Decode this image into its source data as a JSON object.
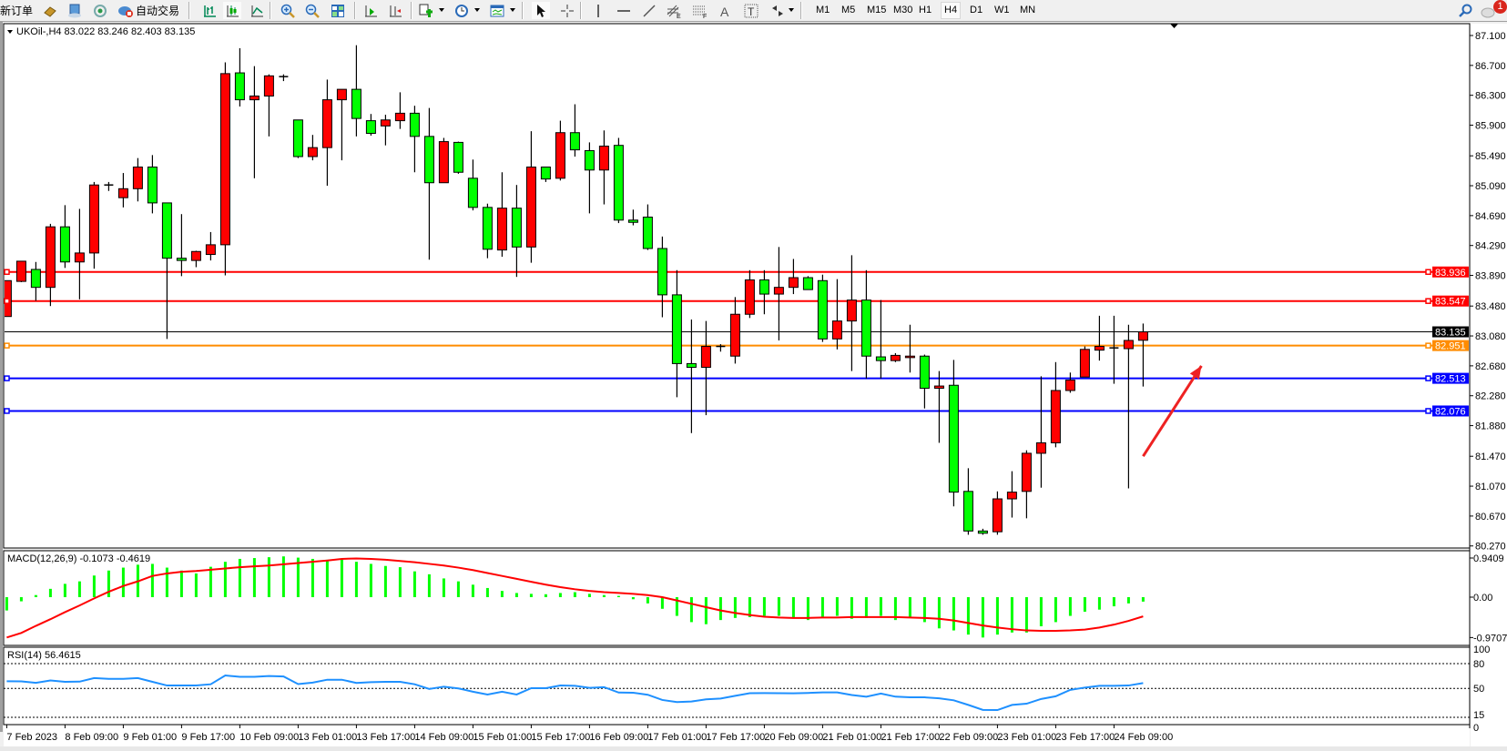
{
  "toolbar": {
    "new_order_label": "新订单",
    "auto_trading_label": "自动交易",
    "timeframes": [
      "M1",
      "M5",
      "M15",
      "M30",
      "H1",
      "H4",
      "D1",
      "W1",
      "MN"
    ],
    "selected_timeframe": "H4",
    "notification_count": "1",
    "icons": [
      "new-order",
      "gold-bars-icon",
      "terminal-icon",
      "signal-icon",
      "auto-trading-icon",
      "bar-chart-icon",
      "candlestick-icon",
      "line-chart-icon",
      "zoom-in-icon",
      "zoom-out-icon",
      "tile-windows-icon",
      "auto-scroll-icon",
      "chart-shift-icon",
      "indicators-icon",
      "periods-icon",
      "templates-icon",
      "cursor-icon",
      "crosshair-icon",
      "vertical-line-icon",
      "horizontal-line-icon",
      "trendline-icon",
      "fibonacci-icon",
      "fibo-fan-icon",
      "text-icon",
      "text-label-icon",
      "arrows-icon",
      "search-icon",
      "chat-icon"
    ]
  },
  "chart": {
    "header": "UKOil-,H4  83.022 83.246 82.403 83.135",
    "colors": {
      "bull": "#ff0000",
      "bear": "#00ff00",
      "grid_bg": "#ffffff",
      "macd_hist": "#00ff00",
      "macd_signal": "#ff0000",
      "rsi": "#1e90ff"
    }
  },
  "chart_data": [
    {
      "type": "candlestick",
      "symbol": "UKOil-",
      "timeframe": "H4",
      "ylim": [
        80.27,
        87.1
      ],
      "y_ticks": [
        "87.100",
        "86.700",
        "86.300",
        "85.900",
        "85.490",
        "85.090",
        "84.690",
        "84.290",
        "83.890",
        "83.480",
        "83.080",
        "82.680",
        "82.280",
        "81.880",
        "81.470",
        "81.070",
        "80.670",
        "80.270"
      ],
      "x_tick_labels": [
        "7 Feb 2023",
        "8 Feb 09:00",
        "9 Feb 01:00",
        "9 Feb 17:00",
        "10 Feb 09:00",
        "13 Feb 01:00",
        "13 Feb 17:00",
        "14 Feb 09:00",
        "15 Feb 01:00",
        "15 Feb 17:00",
        "16 Feb 09:00",
        "17 Feb 01:00",
        "17 Feb 17:00",
        "20 Feb 09:00",
        "21 Feb 01:00",
        "21 Feb 17:00",
        "22 Feb 09:00",
        "23 Feb 01:00",
        "23 Feb 17:00",
        "24 Feb 09:00"
      ],
      "x_tick_every_n_bars": 4,
      "ohlc": [
        [
          83.34,
          83.82,
          83.34,
          83.82
        ],
        [
          83.81,
          84.08,
          83.8,
          84.08
        ],
        [
          83.97,
          84.07,
          83.55,
          83.73
        ],
        [
          83.73,
          84.58,
          83.48,
          84.54
        ],
        [
          84.54,
          84.83,
          83.99,
          84.07
        ],
        [
          84.07,
          84.78,
          83.57,
          84.19
        ],
        [
          84.19,
          85.14,
          83.98,
          85.1
        ],
        [
          85.1,
          85.14,
          85.02,
          85.1
        ],
        [
          84.93,
          85.26,
          84.8,
          85.05
        ],
        [
          85.05,
          85.46,
          84.88,
          85.34
        ],
        [
          85.34,
          85.5,
          84.72,
          84.86
        ],
        [
          84.86,
          84.86,
          83.04,
          84.12
        ],
        [
          84.12,
          84.71,
          83.88,
          84.09
        ],
        [
          84.09,
          84.22,
          84.0,
          84.21
        ],
        [
          84.17,
          84.47,
          84.09,
          84.3
        ],
        [
          84.3,
          86.74,
          83.89,
          86.59
        ],
        [
          86.6,
          86.93,
          86.15,
          86.24
        ],
        [
          86.24,
          86.69,
          85.19,
          86.29
        ],
        [
          86.29,
          86.58,
          85.75,
          86.56
        ],
        [
          86.55,
          86.58,
          86.49,
          86.55
        ],
        [
          85.97,
          85.97,
          85.46,
          85.48
        ],
        [
          85.48,
          85.77,
          85.43,
          85.6
        ],
        [
          85.6,
          86.51,
          85.09,
          86.24
        ],
        [
          86.24,
          86.38,
          85.43,
          86.38
        ],
        [
          86.38,
          86.97,
          85.75,
          85.99
        ],
        [
          85.96,
          86.05,
          85.76,
          85.79
        ],
        [
          85.89,
          86.04,
          85.63,
          85.97
        ],
        [
          85.96,
          86.34,
          85.85,
          86.06
        ],
        [
          86.06,
          86.16,
          85.27,
          85.75
        ],
        [
          85.75,
          86.13,
          84.1,
          85.13
        ],
        [
          85.13,
          85.73,
          85.13,
          85.68
        ],
        [
          85.67,
          85.68,
          85.25,
          85.27
        ],
        [
          85.19,
          85.44,
          84.76,
          84.8
        ],
        [
          84.8,
          84.85,
          84.12,
          84.24
        ],
        [
          84.23,
          85.27,
          84.14,
          84.79
        ],
        [
          84.79,
          85.1,
          83.87,
          84.27
        ],
        [
          84.27,
          85.82,
          84.06,
          85.34
        ],
        [
          85.34,
          85.34,
          85.14,
          85.18
        ],
        [
          85.19,
          85.96,
          85.16,
          85.8
        ],
        [
          85.8,
          86.18,
          85.48,
          85.57
        ],
        [
          85.56,
          85.67,
          84.72,
          85.3
        ],
        [
          85.3,
          85.83,
          84.84,
          85.62
        ],
        [
          85.63,
          85.73,
          84.59,
          84.63
        ],
        [
          84.63,
          84.77,
          84.56,
          84.6
        ],
        [
          84.67,
          84.84,
          84.23,
          84.25
        ],
        [
          84.25,
          84.41,
          83.33,
          83.63
        ],
        [
          83.63,
          83.96,
          82.26,
          82.71
        ],
        [
          82.71,
          83.3,
          81.78,
          82.66
        ],
        [
          82.66,
          83.28,
          82.02,
          82.94
        ],
        [
          82.94,
          82.97,
          82.87,
          82.94
        ],
        [
          82.81,
          83.6,
          82.71,
          83.37
        ],
        [
          83.37,
          83.96,
          83.32,
          83.83
        ],
        [
          83.83,
          83.96,
          83.37,
          83.64
        ],
        [
          83.64,
          84.27,
          83.02,
          83.73
        ],
        [
          83.73,
          84.11,
          83.64,
          83.86
        ],
        [
          83.86,
          83.88,
          83.7,
          83.7
        ],
        [
          83.82,
          83.9,
          83.0,
          83.04
        ],
        [
          83.04,
          83.84,
          82.9,
          83.28
        ],
        [
          83.28,
          84.16,
          82.61,
          83.56
        ],
        [
          83.56,
          83.96,
          82.51,
          82.81
        ],
        [
          82.8,
          83.56,
          82.51,
          82.75
        ],
        [
          82.75,
          82.85,
          82.73,
          82.82
        ],
        [
          82.79,
          83.23,
          82.59,
          82.81
        ],
        [
          82.81,
          82.83,
          82.11,
          82.38
        ],
        [
          82.38,
          82.61,
          81.65,
          82.41
        ],
        [
          82.42,
          82.76,
          80.8,
          80.99
        ],
        [
          81.0,
          81.31,
          80.42,
          80.47
        ],
        [
          80.47,
          80.5,
          80.42,
          80.44
        ],
        [
          80.46,
          81.0,
          80.42,
          80.9
        ],
        [
          80.9,
          81.27,
          80.65,
          80.99
        ],
        [
          81.0,
          81.55,
          80.64,
          81.51
        ],
        [
          81.51,
          82.54,
          81.05,
          81.65
        ],
        [
          81.65,
          82.73,
          81.59,
          82.35
        ],
        [
          82.35,
          82.59,
          82.32,
          82.49
        ],
        [
          82.53,
          82.94,
          82.53,
          82.9
        ],
        [
          82.89,
          83.35,
          82.75,
          82.94
        ],
        [
          82.92,
          83.35,
          82.44,
          82.92
        ],
        [
          82.91,
          83.23,
          81.04,
          83.02
        ],
        [
          83.022,
          83.246,
          82.403,
          83.135
        ]
      ],
      "horizontal_lines": [
        {
          "price": "83.936",
          "color": "#ff0000",
          "label_text": "#ffffff",
          "marker": true
        },
        {
          "price": "83.547",
          "color": "#ff0000",
          "label_text": "#ffffff",
          "marker": true
        },
        {
          "price": "83.135",
          "color": "#000000",
          "label_text": "#ffffff",
          "marker": false
        },
        {
          "price": "82.951",
          "color": "#ff8c00",
          "label_text": "#ffffff",
          "marker": true
        },
        {
          "price": "82.513",
          "color": "#0000ff",
          "label_text": "#ffffff",
          "marker": true
        },
        {
          "price": "82.076",
          "color": "#0000ff",
          "label_text": "#ffffff",
          "marker": true
        }
      ],
      "annotation_arrow": {
        "color": "#ee2222",
        "from": {
          "bar": 78,
          "price": 81.47
        },
        "to": {
          "bar": 82,
          "price": 82.68
        }
      }
    },
    {
      "type": "bar+line",
      "label": "MACD(12,26,9) -0.1073 -0.4619",
      "ylim": [
        -0.9707,
        0.9409
      ],
      "y_ticks": [
        "0.9409",
        "0.00",
        "-0.9707"
      ],
      "histogram": [
        -0.32,
        -0.1,
        0.05,
        0.2,
        0.32,
        0.38,
        0.52,
        0.64,
        0.71,
        0.78,
        0.8,
        0.71,
        0.64,
        0.57,
        0.73,
        0.85,
        0.92,
        0.94,
        0.96,
        0.98,
        0.95,
        0.92,
        0.9,
        0.9,
        0.85,
        0.8,
        0.75,
        0.72,
        0.62,
        0.55,
        0.45,
        0.38,
        0.3,
        0.22,
        0.15,
        0.1,
        0.08,
        0.07,
        0.1,
        0.12,
        0.08,
        0.05,
        0.03,
        -0.05,
        -0.15,
        -0.28,
        -0.45,
        -0.6,
        -0.65,
        -0.55,
        -0.5,
        -0.48,
        -0.45,
        -0.45,
        -0.5,
        -0.55,
        -0.5,
        -0.45,
        -0.52,
        -0.5,
        -0.45,
        -0.55,
        -0.5,
        -0.6,
        -0.75,
        -0.8,
        -0.9,
        -0.97,
        -0.9,
        -0.85,
        -0.85,
        -0.7,
        -0.6,
        -0.45,
        -0.35,
        -0.3,
        -0.22,
        -0.15,
        -0.1073
      ],
      "signal": [
        -0.97,
        -0.86,
        -0.69,
        -0.53,
        -0.36,
        -0.2,
        -0.03,
        0.13,
        0.27,
        0.38,
        0.51,
        0.57,
        0.61,
        0.63,
        0.66,
        0.69,
        0.72,
        0.74,
        0.76,
        0.79,
        0.82,
        0.85,
        0.88,
        0.92,
        0.93,
        0.92,
        0.9,
        0.87,
        0.84,
        0.8,
        0.76,
        0.71,
        0.65,
        0.58,
        0.51,
        0.44,
        0.37,
        0.3,
        0.24,
        0.19,
        0.15,
        0.12,
        0.1,
        0.08,
        0.05,
        0.0,
        -0.08,
        -0.16,
        -0.24,
        -0.32,
        -0.38,
        -0.43,
        -0.47,
        -0.49,
        -0.5,
        -0.5,
        -0.49,
        -0.49,
        -0.48,
        -0.48,
        -0.48,
        -0.48,
        -0.49,
        -0.5,
        -0.52,
        -0.56,
        -0.62,
        -0.68,
        -0.73,
        -0.77,
        -0.8,
        -0.81,
        -0.81,
        -0.8,
        -0.78,
        -0.73,
        -0.66,
        -0.57,
        -0.4619
      ]
    },
    {
      "type": "line",
      "label": "RSI(14) 56.4615",
      "ylim": [
        0,
        100
      ],
      "y_ticks": [
        "100",
        "80",
        "50",
        "15",
        "0"
      ],
      "levels": [
        80,
        50,
        15
      ],
      "values": [
        58.7,
        58.5,
        56.8,
        59.6,
        58,
        58.2,
        62.5,
        61.5,
        61.6,
        62.5,
        58,
        53.5,
        53.5,
        53.5,
        55,
        65.7,
        64,
        64,
        65,
        64.5,
        55.2,
        57,
        60.5,
        60.5,
        56.6,
        57.5,
        58,
        58,
        55,
        49.3,
        52.1,
        50,
        46,
        42.5,
        46,
        42.6,
        50.3,
        50.3,
        53.5,
        53.2,
        50.7,
        51.5,
        45,
        44.8,
        42.3,
        36,
        33.5,
        34.2,
        36.7,
        37.7,
        41,
        44.2,
        44.3,
        44.2,
        44,
        44.5,
        45.1,
        45.1,
        42,
        40,
        43.7,
        40,
        39.2,
        39.2,
        38,
        35.6,
        30,
        24,
        23.8,
        30,
        31.5,
        37.2,
        40.5,
        48.2,
        51,
        53.1,
        53.1,
        53.5,
        56.4615
      ]
    }
  ]
}
